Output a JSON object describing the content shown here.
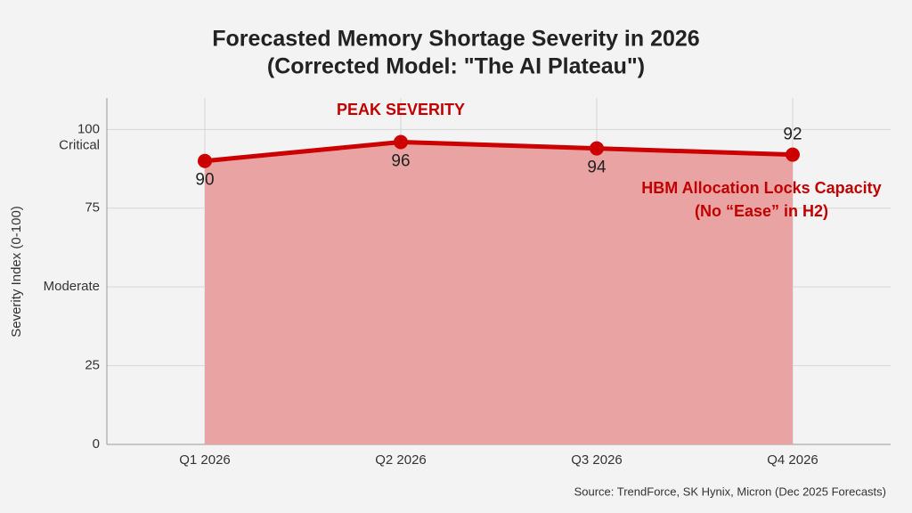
{
  "chart_data": {
    "type": "area-line",
    "title": "Forecasted Memory Shortage Severity in 2026",
    "subtitle": "(Corrected Model: \"The AI Plateau\")",
    "y_label": "Severity Index (0-100)",
    "categories": [
      "Q1 2026",
      "Q2 2026",
      "Q3 2026",
      "Q4 2026"
    ],
    "values": [
      90,
      96,
      94,
      92
    ],
    "line_color": "#cc0000",
    "fill_color": "#e9a3a3",
    "ylim": [
      0,
      110
    ],
    "yticks": [
      0,
      25,
      {
        "value": 50,
        "label": "Moderate"
      },
      75,
      100
    ],
    "critical_label": "Critical",
    "grid": true,
    "annotations": [
      "PEAK SEVERITY",
      "HBM Allocation Locks Capacity",
      "(No “Ease” in H2)"
    ],
    "source": "Source: TrendForce, SK Hynix, Micron (Dec 2025 Forecasts)"
  }
}
